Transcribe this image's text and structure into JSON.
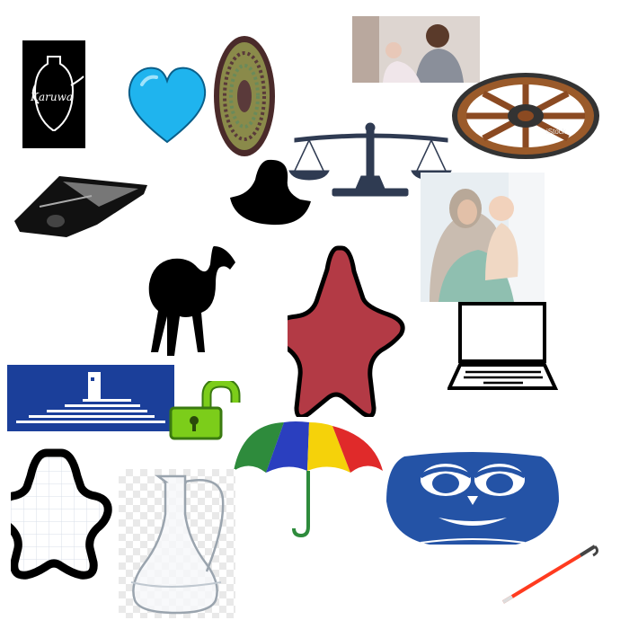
{
  "karuwa_tile": {
    "label": "Karuwa",
    "background": "#000000",
    "line_color": "#ffffff"
  },
  "heart": {
    "color": "#1fb4ee"
  },
  "basket": {
    "rim": "#4a2a2a",
    "weave": "#8a8a4a"
  },
  "family_photo_1": {
    "caption": ""
  },
  "wheel": {
    "wood": "#8b4a22",
    "metal": "#333333",
    "watermark": "iStock"
  },
  "scale": {
    "color": "#2f3b52"
  },
  "mouse": {
    "color": "#111111"
  },
  "hijab_photo": {
    "caption": ""
  },
  "camel": {
    "color": "#000000"
  },
  "star": {
    "fill": "#b33a45",
    "outline": "#000000"
  },
  "laptop": {
    "color": "#000000"
  },
  "blue_logo": {
    "color": "#1b3f9a"
  },
  "lock": {
    "color": "#7ccd1a",
    "state": "open"
  },
  "umbrella": {
    "colors": [
      "#2e8b3c",
      "#2a3fbf",
      "#f5d20a",
      "#e02a2a"
    ]
  },
  "owl": {
    "color": "#2453a6"
  },
  "star_outline": {
    "stroke": "#000000"
  },
  "carafe": {
    "color": "#b0b8c0"
  },
  "cane": {
    "shaft": "#ff3b1f",
    "handle": "#444444"
  }
}
